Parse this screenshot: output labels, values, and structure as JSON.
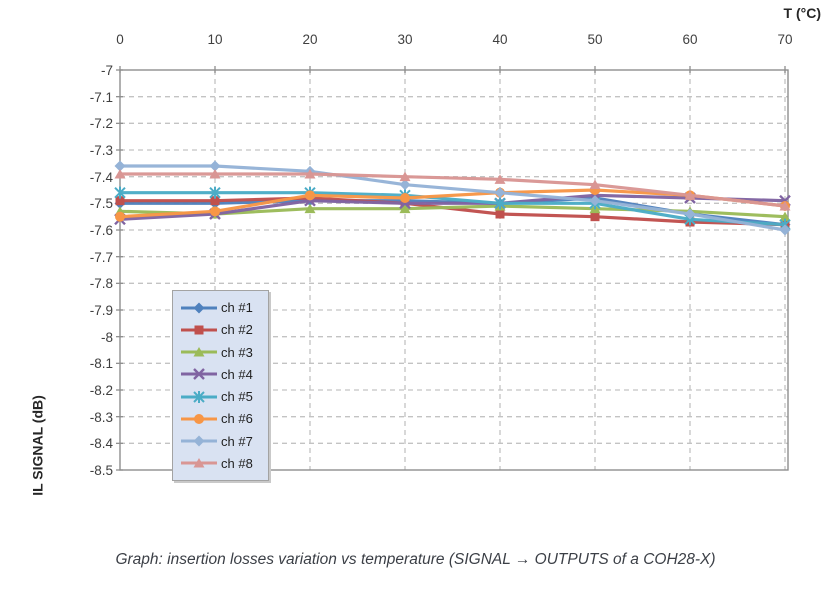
{
  "figure": {
    "x_axis_title": "T (°C)",
    "y_axis_title": "IL SIGNAL (dB)",
    "caption": "Graph: insertion losses variation vs temperature (SIGNAL → OUTPUTS of a COH28-X)"
  },
  "chart_data": {
    "type": "line",
    "title": "",
    "xlabel": "T (°C)",
    "ylabel": "IL SIGNAL (dB)",
    "x": [
      0,
      10,
      20,
      30,
      40,
      50,
      60,
      70
    ],
    "xlim": [
      0,
      70
    ],
    "ylim": [
      -8.5,
      -7
    ],
    "y_ticks": [
      "-7",
      "-7.1",
      "-7.2",
      "-7.3",
      "-7.4",
      "-7.5",
      "-7.6",
      "-7.7",
      "-7.8",
      "-7.9",
      "-8",
      "-8.1",
      "-8.2",
      "-8.3",
      "-8.4",
      "-8.5"
    ],
    "grid": true,
    "grid_style": "dashed",
    "grid_color": "#c3c3c3",
    "axis_color": "#8e8e8e",
    "legend_position": "inside-left",
    "legend_fill": "#d9e2f2",
    "series": [
      {
        "name": "ch #1",
        "color": "#4F81BD",
        "marker": "diamond",
        "values": [
          -7.5,
          -7.5,
          -7.49,
          -7.49,
          -7.5,
          -7.48,
          -7.54,
          -7.58
        ]
      },
      {
        "name": "ch #2",
        "color": "#C0504D",
        "marker": "square",
        "values": [
          -7.49,
          -7.49,
          -7.48,
          -7.5,
          -7.54,
          -7.55,
          -7.57,
          -7.58
        ]
      },
      {
        "name": "ch #3",
        "color": "#9BBB59",
        "marker": "triangle",
        "values": [
          -7.53,
          -7.54,
          -7.52,
          -7.52,
          -7.51,
          -7.52,
          -7.53,
          -7.55
        ]
      },
      {
        "name": "ch #4",
        "color": "#8064A2",
        "marker": "x",
        "values": [
          -7.56,
          -7.54,
          -7.49,
          -7.5,
          -7.5,
          -7.47,
          -7.48,
          -7.49
        ]
      },
      {
        "name": "ch #5",
        "color": "#4BACC6",
        "marker": "asterisk",
        "values": [
          -7.46,
          -7.46,
          -7.46,
          -7.47,
          -7.5,
          -7.5,
          -7.56,
          -7.58
        ]
      },
      {
        "name": "ch #6",
        "color": "#F79646",
        "marker": "circle",
        "values": [
          -7.55,
          -7.53,
          -7.47,
          -7.48,
          -7.46,
          -7.45,
          -7.47,
          -7.51
        ]
      },
      {
        "name": "ch #7",
        "color": "#95B3D7",
        "marker": "diamond",
        "values": [
          -7.36,
          -7.36,
          -7.38,
          -7.43,
          -7.46,
          -7.49,
          -7.54,
          -7.6
        ]
      },
      {
        "name": "ch #8",
        "color": "#D99694",
        "marker": "triangle",
        "values": [
          -7.39,
          -7.39,
          -7.39,
          -7.4,
          -7.41,
          -7.43,
          -7.47,
          -7.51
        ]
      }
    ]
  }
}
